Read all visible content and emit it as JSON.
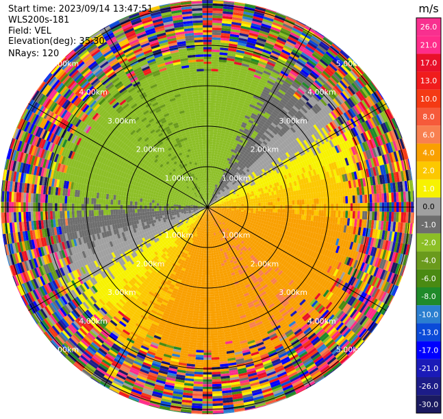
{
  "header": {
    "start_time": "Start time: 2023/09/14 13:47:51",
    "instrument": "WLS200s-181",
    "field": "Field: VEL",
    "elevation": "Elevation(deg): 35.30",
    "nrays": "NRays: 120"
  },
  "colorbar": {
    "unit": "m/s",
    "ticks": [
      "26.0",
      "21.0",
      "17.0",
      "13.0",
      "10.0",
      "8.0",
      "6.0",
      "4.0",
      "2.0",
      "1.0",
      "0.0",
      "-1.0",
      "-2.0",
      "-4.0",
      "-6.0",
      "-8.0",
      "-10.0",
      "-13.0",
      "-17.0",
      "-21.0",
      "-26.0",
      "-30.0"
    ],
    "colors": [
      "#f8308f",
      "#ff2c8a",
      "#e8102a",
      "#f01c1c",
      "#f43a14",
      "#f65a3a",
      "#f88050",
      "#f9a000",
      "#fcc800",
      "#f7f200",
      "#a0a0a0",
      "#6e6e6e",
      "#8cbf26",
      "#6a9a1c",
      "#4a8a12",
      "#1f8a2a",
      "#2b7fd0",
      "#0a4ad8",
      "#0000ff",
      "#1a1ab8",
      "#1c1c88",
      "#1a1a60"
    ]
  },
  "chart_data": {
    "type": "heatmap",
    "projection": "polar-ppi",
    "field": "VEL",
    "units": "m/s",
    "nrays": 120,
    "range_rings_km": [
      1.0,
      2.0,
      3.0,
      4.0,
      5.0
    ],
    "ring_labels": [
      "1.00km",
      "2.00km",
      "3.00km",
      "4.00km",
      "5.00km"
    ],
    "azimuth_lines_deg": [
      0,
      30,
      60,
      90,
      120,
      150,
      180,
      210,
      240,
      270,
      300,
      330
    ],
    "color_range": [
      -30.0,
      26.0
    ]
  }
}
